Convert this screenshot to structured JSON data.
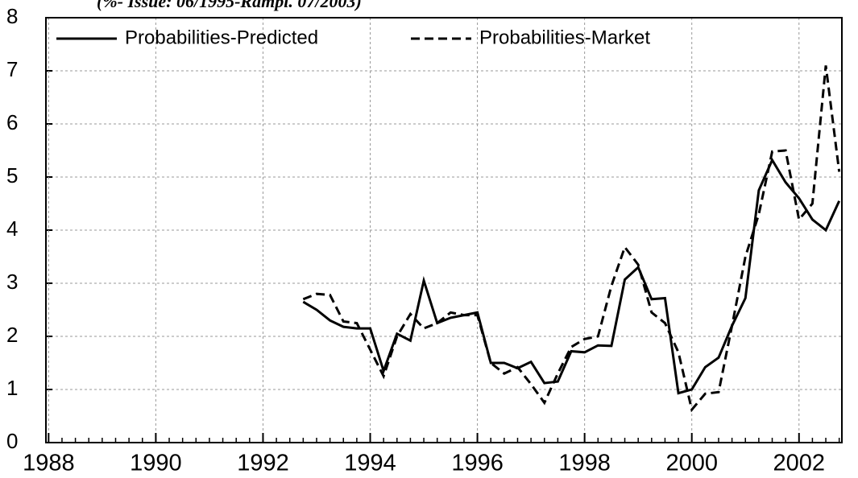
{
  "chart_data": {
    "type": "line",
    "subtitle": "(%- Issue: 06/1995-Rampl. 07/2003)",
    "x": [
      1992.75,
      1993,
      1993.25,
      1993.5,
      1993.75,
      1994,
      1994.25,
      1994.5,
      1994.75,
      1995,
      1995.25,
      1995.5,
      1995.75,
      1996,
      1996.25,
      1996.5,
      1996.75,
      1997,
      1997.25,
      1997.5,
      1997.75,
      1998,
      1998.25,
      1998.5,
      1998.75,
      1999,
      1999.25,
      1999.5,
      1999.75,
      2000,
      2000.25,
      2000.5,
      2000.75,
      2001,
      2001.25,
      2001.5,
      2001.75,
      2002,
      2002.25,
      2002.5,
      2002.75
    ],
    "series": [
      {
        "name": "Probabilities-Predicted",
        "color": "#000000",
        "dash": "solid",
        "values": [
          2.65,
          2.5,
          2.3,
          2.18,
          2.15,
          2.15,
          1.35,
          2.05,
          1.92,
          3.05,
          2.25,
          2.35,
          2.4,
          2.45,
          1.5,
          1.5,
          1.4,
          1.52,
          1.12,
          1.15,
          1.72,
          1.7,
          1.83,
          1.82,
          3.07,
          3.3,
          2.7,
          2.72,
          0.93,
          1.0,
          1.42,
          1.6,
          2.2,
          2.72,
          4.75,
          5.32,
          4.9,
          4.6,
          4.2,
          4.0,
          4.55
        ]
      },
      {
        "name": "Probabilities-Market",
        "color": "#000000",
        "dash": "dashed",
        "values": [
          2.7,
          2.8,
          2.78,
          2.28,
          2.25,
          1.75,
          1.25,
          2.0,
          2.42,
          2.15,
          2.25,
          2.45,
          2.4,
          2.4,
          1.5,
          1.3,
          1.42,
          1.1,
          0.75,
          1.3,
          1.8,
          1.95,
          2.0,
          2.95,
          3.68,
          3.35,
          2.45,
          2.25,
          1.7,
          0.62,
          0.92,
          0.95,
          2.2,
          3.5,
          4.3,
          5.48,
          5.5,
          4.2,
          4.5,
          7.1,
          5.1
        ]
      }
    ],
    "xlim": [
      1987.95,
      2002.8
    ],
    "xticks": [
      1988,
      1990,
      1992,
      1994,
      1996,
      1998,
      2000,
      2002
    ],
    "ylim": [
      0,
      8
    ],
    "yticks": [
      0,
      1,
      2,
      3,
      4,
      5,
      6,
      7,
      8
    ],
    "grid": true,
    "legend": "top"
  }
}
